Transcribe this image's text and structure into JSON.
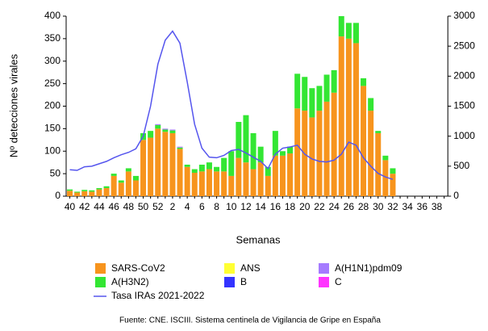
{
  "chart_data": {
    "type": "bar",
    "ylabel": "Nº detecciones virales",
    "xlabel": "Semanas",
    "source": "Fuente: CNE. ISCIII. Sistema centinela de Vigilancia de Gripe en España",
    "categories": [
      "40",
      null,
      "42",
      null,
      "44",
      null,
      "46",
      null,
      "48",
      null,
      "50",
      null,
      "52",
      null,
      "2",
      null,
      "4",
      null,
      "6",
      null,
      "8",
      null,
      "10",
      null,
      "12",
      null,
      "14",
      null,
      "16",
      null,
      "18",
      null,
      "20",
      null,
      "22",
      null,
      "24",
      null,
      "26",
      null,
      "28",
      null,
      "30",
      null,
      "32",
      null,
      "34",
      null,
      "36",
      null,
      "38",
      null
    ],
    "series": [
      {
        "name": "SARS-CoV2",
        "color": "#f7941d",
        "values": [
          12,
          8,
          11,
          10,
          15,
          18,
          45,
          30,
          55,
          35,
          125,
          130,
          150,
          143,
          140,
          105,
          65,
          52,
          55,
          60,
          55,
          55,
          45,
          85,
          75,
          60,
          75,
          45,
          90,
          90,
          95,
          195,
          190,
          175,
          190,
          210,
          230,
          355,
          350,
          340,
          245,
          190,
          140,
          80,
          50,
          null,
          null,
          null,
          null,
          null,
          null,
          null
        ]
      },
      {
        "name": "A(H3N2)",
        "color": "#33e633",
        "values": [
          3,
          2,
          3,
          3,
          3,
          4,
          5,
          5,
          7,
          10,
          15,
          15,
          8,
          5,
          6,
          3,
          5,
          8,
          15,
          15,
          10,
          30,
          55,
          80,
          105,
          80,
          35,
          20,
          55,
          10,
          15,
          77,
          75,
          65,
          55,
          60,
          50,
          45,
          35,
          45,
          17,
          28,
          5,
          10,
          12,
          null,
          null,
          null,
          null,
          null,
          null,
          null
        ]
      },
      {
        "name": "ANS",
        "color": "#ffff33",
        "values": [
          0,
          0,
          0,
          0,
          0,
          0,
          0,
          0,
          0,
          0,
          0,
          0,
          0,
          0,
          0,
          0,
          0,
          0,
          0,
          0,
          0,
          0,
          0,
          0,
          0,
          0,
          0,
          0,
          0,
          0,
          0,
          0,
          0,
          0,
          0,
          0,
          0,
          0,
          0,
          0,
          0,
          0,
          0,
          0,
          0,
          null,
          null,
          null,
          null,
          null,
          null,
          null
        ]
      },
      {
        "name": "B",
        "color": "#3333ff",
        "values": [
          0,
          0,
          0,
          0,
          0,
          0,
          0,
          0,
          0,
          0,
          0,
          0,
          0,
          0,
          0,
          0,
          0,
          0,
          0,
          0,
          0,
          0,
          0,
          0,
          0,
          0,
          0,
          0,
          0,
          0,
          0,
          0,
          0,
          0,
          0,
          0,
          0,
          0,
          0,
          0,
          0,
          0,
          0,
          0,
          0,
          null,
          null,
          null,
          null,
          null,
          null,
          null
        ]
      },
      {
        "name": "A(H1N1)pdm09",
        "color": "#a57bff",
        "values": [
          0,
          0,
          0,
          0,
          0,
          0,
          0,
          0,
          0,
          0,
          0,
          0,
          2,
          2,
          2,
          2,
          0,
          0,
          0,
          0,
          0,
          0,
          0,
          0,
          0,
          0,
          0,
          0,
          0,
          0,
          0,
          0,
          0,
          0,
          0,
          0,
          0,
          0,
          0,
          0,
          0,
          0,
          0,
          0,
          0,
          null,
          null,
          null,
          null,
          null,
          null,
          null
        ]
      },
      {
        "name": "C",
        "color": "#ff33ff",
        "values": [
          0,
          0,
          0,
          0,
          0,
          0,
          0,
          0,
          0,
          0,
          0,
          0,
          0,
          0,
          0,
          0,
          0,
          0,
          0,
          0,
          0,
          0,
          0,
          0,
          0,
          0,
          0,
          0,
          0,
          0,
          0,
          0,
          0,
          0,
          0,
          0,
          0,
          0,
          0,
          0,
          0,
          0,
          0,
          0,
          0,
          null,
          null,
          null,
          null,
          null,
          null,
          null
        ]
      },
      {
        "name": "Tasa IRAs 2021-2022",
        "color": "#5555ee",
        "type": "line",
        "axis": "y2",
        "values": [
          440,
          430,
          490,
          500,
          540,
          580,
          640,
          690,
          730,
          790,
          1000,
          1500,
          2200,
          2600,
          2750,
          2550,
          1900,
          1200,
          800,
          650,
          640,
          680,
          760,
          780,
          720,
          650,
          580,
          460,
          700,
          800,
          820,
          850,
          700,
          620,
          580,
          570,
          600,
          700,
          900,
          850,
          640,
          500,
          380,
          320,
          280,
          null,
          null,
          null,
          null,
          null,
          null,
          null
        ]
      }
    ],
    "ylim": [
      0,
      400
    ],
    "yticks": [
      0,
      50,
      100,
      150,
      200,
      250,
      300,
      350,
      400
    ],
    "y2lim": [
      0,
      3000
    ],
    "y2ticks": [
      0,
      500,
      1000,
      1500,
      2000,
      2500,
      3000
    ]
  }
}
